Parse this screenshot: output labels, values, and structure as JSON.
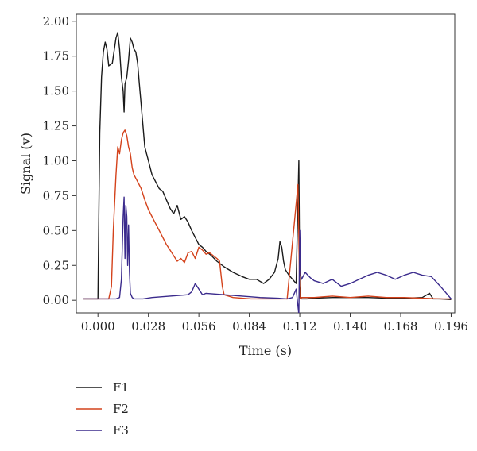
{
  "chart_data": {
    "type": "line",
    "title": "",
    "xlabel": "Time (s)",
    "ylabel": "Signal (v)",
    "xlim": [
      -0.012,
      0.198
    ],
    "ylim": [
      -0.09,
      2.05
    ],
    "xticks": [
      0.0,
      0.028,
      0.056,
      0.084,
      0.112,
      0.14,
      0.168,
      0.196
    ],
    "xtick_labels": [
      "0.000",
      "0.028",
      "0.056",
      "0.084",
      "0.112",
      "0.140",
      "0.168",
      "0.196"
    ],
    "yticks": [
      0.0,
      0.25,
      0.5,
      0.75,
      1.0,
      1.25,
      1.5,
      1.75,
      2.0
    ],
    "ytick_labels": [
      "0.00",
      "0.25",
      "0.50",
      "0.75",
      "1.00",
      "1.25",
      "1.50",
      "1.75",
      "2.00"
    ],
    "grid": false,
    "legend_position": "below",
    "series": [
      {
        "name": "F1",
        "color": "#1a1a1a",
        "x": [
          -0.008,
          0.0,
          0.0005,
          0.001,
          0.002,
          0.003,
          0.004,
          0.005,
          0.006,
          0.008,
          0.01,
          0.011,
          0.012,
          0.013,
          0.014,
          0.0145,
          0.015,
          0.016,
          0.017,
          0.018,
          0.019,
          0.02,
          0.021,
          0.022,
          0.023,
          0.024,
          0.026,
          0.028,
          0.03,
          0.032,
          0.034,
          0.036,
          0.038,
          0.04,
          0.042,
          0.044,
          0.046,
          0.048,
          0.05,
          0.052,
          0.054,
          0.056,
          0.058,
          0.06,
          0.063,
          0.066,
          0.07,
          0.075,
          0.08,
          0.084,
          0.088,
          0.092,
          0.095,
          0.098,
          0.1,
          0.101,
          0.102,
          0.103,
          0.104,
          0.106,
          0.108,
          0.11,
          0.1115,
          0.112,
          0.1125,
          0.113,
          0.116,
          0.12,
          0.13,
          0.14,
          0.15,
          0.16,
          0.17,
          0.18,
          0.184,
          0.186,
          0.19,
          0.196
        ],
        "values": [
          0.01,
          0.01,
          0.6,
          1.2,
          1.6,
          1.78,
          1.85,
          1.8,
          1.68,
          1.7,
          1.88,
          1.92,
          1.8,
          1.6,
          1.5,
          1.35,
          1.55,
          1.6,
          1.72,
          1.88,
          1.85,
          1.8,
          1.78,
          1.7,
          1.55,
          1.4,
          1.1,
          1.0,
          0.9,
          0.85,
          0.8,
          0.78,
          0.72,
          0.66,
          0.62,
          0.68,
          0.58,
          0.6,
          0.56,
          0.5,
          0.45,
          0.4,
          0.38,
          0.35,
          0.32,
          0.28,
          0.24,
          0.2,
          0.17,
          0.15,
          0.15,
          0.12,
          0.15,
          0.2,
          0.3,
          0.42,
          0.38,
          0.28,
          0.22,
          0.18,
          0.15,
          0.12,
          1.0,
          0.1,
          0.02,
          0.01,
          0.01,
          0.015,
          0.02,
          0.02,
          0.02,
          0.015,
          0.015,
          0.02,
          0.05,
          0.01,
          0.01,
          0.005
        ]
      },
      {
        "name": "F2",
        "color": "#d4421b",
        "x": [
          -0.008,
          0.0,
          0.006,
          0.0075,
          0.0085,
          0.01,
          0.011,
          0.012,
          0.013,
          0.014,
          0.015,
          0.016,
          0.017,
          0.018,
          0.019,
          0.02,
          0.022,
          0.024,
          0.026,
          0.028,
          0.03,
          0.032,
          0.034,
          0.036,
          0.038,
          0.04,
          0.042,
          0.044,
          0.046,
          0.048,
          0.05,
          0.052,
          0.054,
          0.056,
          0.058,
          0.06,
          0.062,
          0.064,
          0.066,
          0.0675,
          0.069,
          0.07,
          0.075,
          0.085,
          0.095,
          0.105,
          0.111,
          0.112,
          0.1125,
          0.113,
          0.12,
          0.13,
          0.14,
          0.15,
          0.16,
          0.17,
          0.18,
          0.19,
          0.196
        ],
        "values": [
          0.01,
          0.01,
          0.01,
          0.1,
          0.5,
          0.9,
          1.1,
          1.05,
          1.15,
          1.2,
          1.22,
          1.18,
          1.1,
          1.05,
          0.95,
          0.9,
          0.85,
          0.8,
          0.72,
          0.65,
          0.6,
          0.55,
          0.5,
          0.45,
          0.4,
          0.36,
          0.32,
          0.28,
          0.3,
          0.27,
          0.34,
          0.35,
          0.3,
          0.38,
          0.36,
          0.33,
          0.34,
          0.32,
          0.3,
          0.28,
          0.1,
          0.04,
          0.02,
          0.01,
          0.01,
          0.01,
          0.83,
          0.02,
          0.01,
          0.02,
          0.02,
          0.03,
          0.02,
          0.03,
          0.02,
          0.02,
          0.015,
          0.01,
          0.01
        ]
      },
      {
        "name": "F3",
        "color": "#3a2a8c",
        "x": [
          -0.008,
          0.0,
          0.01,
          0.012,
          0.013,
          0.014,
          0.0145,
          0.015,
          0.0155,
          0.016,
          0.0165,
          0.017,
          0.0175,
          0.018,
          0.019,
          0.02,
          0.025,
          0.03,
          0.04,
          0.05,
          0.052,
          0.054,
          0.056,
          0.058,
          0.06,
          0.07,
          0.08,
          0.09,
          0.1,
          0.105,
          0.108,
          0.11,
          0.1115,
          0.112,
          0.1125,
          0.113,
          0.115,
          0.118,
          0.12,
          0.125,
          0.13,
          0.135,
          0.14,
          0.145,
          0.15,
          0.155,
          0.16,
          0.165,
          0.17,
          0.175,
          0.18,
          0.185,
          0.19,
          0.196
        ],
        "values": [
          0.01,
          0.01,
          0.01,
          0.02,
          0.15,
          0.6,
          0.74,
          0.3,
          0.68,
          0.6,
          0.25,
          0.54,
          0.2,
          0.05,
          0.02,
          0.01,
          0.01,
          0.02,
          0.03,
          0.04,
          0.06,
          0.12,
          0.08,
          0.04,
          0.05,
          0.04,
          0.03,
          0.02,
          0.015,
          0.01,
          0.02,
          0.08,
          -0.1,
          0.5,
          0.18,
          0.15,
          0.2,
          0.16,
          0.14,
          0.12,
          0.15,
          0.1,
          0.12,
          0.15,
          0.18,
          0.2,
          0.18,
          0.15,
          0.18,
          0.2,
          0.18,
          0.17,
          0.1,
          0.01
        ]
      }
    ]
  }
}
